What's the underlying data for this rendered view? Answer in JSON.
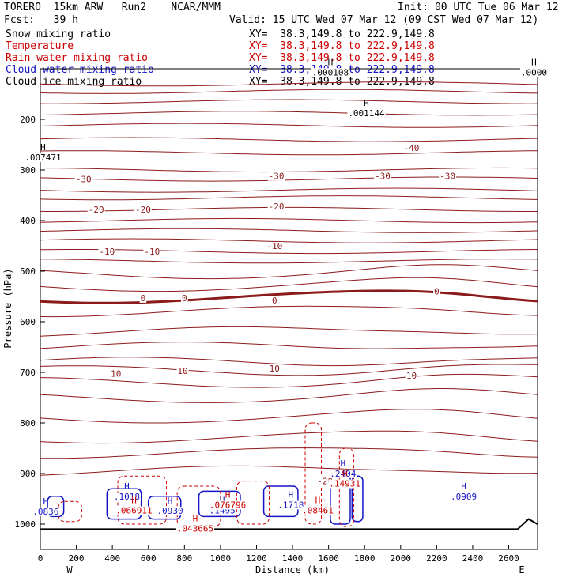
{
  "header": {
    "model": "TORERO  15km ARW   Run2    NCAR/MMM",
    "init": "Init: 00 UTC Tue 06 Mar 12",
    "fcst": "Fcst:   39 h",
    "valid": "Valid: 15 UTC Wed 07 Mar 12 (09 CST Wed 07 Mar 12)"
  },
  "fields": [
    {
      "label": "Snow mixing ratio",
      "xy": "XY=  38.3,149.8 to 222.9,149.8",
      "color": "#000000"
    },
    {
      "label": "Temperature",
      "xy": "XY=  38.3,149.8 to 222.9,149.8",
      "color": "#cc0000"
    },
    {
      "label": "Rain water mixing ratio",
      "xy": "XY=  38.3,149.8 to 222.9,149.8",
      "color": "#cc0000"
    },
    {
      "label": "Cloud water mixing ratio",
      "xy": "XY=  38.3,149.8 to 222.9,149.8",
      "color": "#1515c8"
    },
    {
      "label": "Cloud ice mixing ratio",
      "xy": "XY=  38.3,149.8 to 222.9,149.8",
      "color": "#000000"
    }
  ],
  "chart_data": {
    "type": "contour",
    "xlabel": "Distance (km)",
    "ylabel": "Pressure (hPa)",
    "xlim": [
      0,
      2760
    ],
    "ylim": [
      1050,
      100
    ],
    "yscale": "linear",
    "x_ticks": [
      0,
      200,
      400,
      600,
      800,
      1000,
      1200,
      1400,
      1600,
      1800,
      2000,
      2200,
      2400,
      2600
    ],
    "y_ticks": [
      200,
      300,
      400,
      500,
      600,
      700,
      800,
      900,
      1000
    ],
    "x_end_labels": {
      "left": "W",
      "right": "E"
    },
    "temperature_contours": [
      {
        "value": -30,
        "labels": [
          "-30",
          "-30",
          "-30",
          "-30"
        ],
        "label_x": [
          240,
          1310,
          1900,
          2260
        ],
        "label_p": [
          318,
          312,
          312,
          312
        ]
      },
      {
        "value": -20,
        "labels": [
          "-20",
          "-20",
          "-20"
        ],
        "label_x": [
          310,
          570,
          1310
        ],
        "label_p": [
          378,
          378,
          372
        ]
      },
      {
        "value": -10,
        "labels": [
          "-10",
          "-10",
          "-10"
        ],
        "label_x": [
          370,
          620,
          1300
        ],
        "label_p": [
          461,
          461,
          450
        ]
      },
      {
        "value": 0,
        "labels": [
          "0",
          "0",
          "0",
          "0"
        ],
        "label_x": [
          570,
          800,
          1300,
          2200
        ],
        "label_p": [
          553,
          553,
          558,
          540
        ]
      },
      {
        "value": 10,
        "labels": [
          "10",
          "10",
          "10"
        ],
        "label_x": [
          420,
          790,
          1300
        ],
        "label_p": [
          702,
          697,
          692
        ]
      },
      {
        "value": -40,
        "labels": [
          "-40"
        ],
        "label_x": [
          2060
        ],
        "label_p": [
          256
        ]
      },
      {
        "value": -20,
        "labels": [
          "-20"
        ],
        "label_x": [
          1580
        ],
        "label_p": [
          915
        ]
      },
      {
        "value": 10,
        "labels": [
          "10"
        ],
        "label_x": [
          2060
        ],
        "label_p": [
          706
        ]
      },
      {
        "value": -20,
        "labels": [
          "-20"
        ],
        "label_x": [
          2330
        ],
        "label_p": [
          947
        ]
      }
    ],
    "highs": [
      {
        "field": "snow",
        "label": ".001144",
        "x": 1810,
        "p": 183
      },
      {
        "field": "snow",
        "label": ".007471",
        "x": 15,
        "p": 270
      },
      {
        "field": "snow",
        "label": ".000108",
        "x": 1610,
        "p": 102
      },
      {
        "field": "snow",
        "label": ".0000",
        "x": 2740,
        "p": 102
      },
      {
        "field": "cloud_water",
        "label": ".0836",
        "x": 30,
        "p": 970
      },
      {
        "field": "cloud_water",
        "label": ".1018",
        "x": 480,
        "p": 941
      },
      {
        "field": "cloud_water",
        "label": ".0930",
        "x": 720,
        "p": 969
      },
      {
        "field": "cloud_water",
        "label": ".1495",
        "x": 1010,
        "p": 968
      },
      {
        "field": "cloud_water",
        "label": ".1718",
        "x": 1390,
        "p": 957
      },
      {
        "field": "cloud_water",
        "label": ".2404",
        "x": 1680,
        "p": 895
      },
      {
        "field": "cloud_water",
        "label": ".0909",
        "x": 2350,
        "p": 941
      },
      {
        "field": "rain",
        "label": ".066911",
        "x": 520,
        "p": 968
      },
      {
        "field": "rain",
        "label": ".076796",
        "x": 1040,
        "p": 957
      },
      {
        "field": "rain",
        "label": ".08461",
        "x": 1540,
        "p": 968
      },
      {
        "field": "rain",
        "label": ".14931",
        "x": 1690,
        "p": 915
      },
      {
        "field": "rain",
        "label": ".043665",
        "x": 860,
        "p": 1004
      }
    ],
    "lows_text": [
      ".001",
      ".001",
      ".001",
      ".001",
      ".001",
      ".001",
      "20",
      "-20"
    ]
  }
}
